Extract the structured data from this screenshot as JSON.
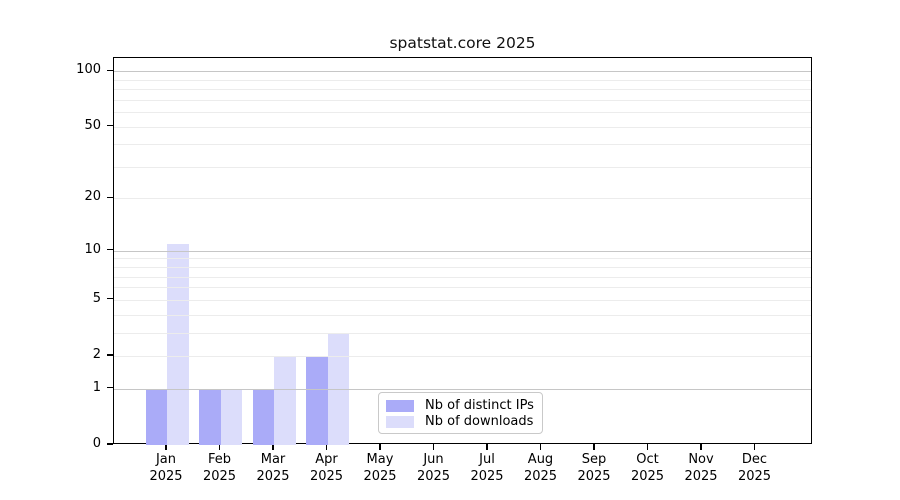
{
  "title": "spatstat.core 2025",
  "chart_data": {
    "type": "bar",
    "title": "spatstat.core 2025",
    "categories": [
      "Jan 2025",
      "Feb 2025",
      "Mar 2025",
      "Apr 2025",
      "May 2025",
      "Jun 2025",
      "Jul 2025",
      "Aug 2025",
      "Sep 2025",
      "Oct 2025",
      "Nov 2025",
      "Dec 2025"
    ],
    "series": [
      {
        "name": "Nb of distinct IPs",
        "color": "#aaabf8",
        "values": [
          1,
          1,
          1,
          2,
          0,
          0,
          0,
          0,
          0,
          0,
          0,
          0
        ]
      },
      {
        "name": "Nb of downloads",
        "color": "#dcddfb",
        "values": [
          11,
          1,
          2,
          3,
          0,
          0,
          0,
          0,
          0,
          0,
          0,
          0
        ]
      }
    ],
    "xlabel": "",
    "ylabel": "",
    "y_scale": "log1p",
    "ylim": [
      0,
      118
    ],
    "y_ticks": [
      0,
      1,
      2,
      5,
      10,
      20,
      50,
      100
    ],
    "y_major_gridlines": [
      1,
      10,
      100
    ],
    "y_minor_gridlines": [
      2,
      3,
      4,
      5,
      6,
      7,
      8,
      9,
      20,
      30,
      40,
      50,
      60,
      70,
      80,
      90
    ],
    "grid": true,
    "legend_position": "inside-bottom-center"
  },
  "legend": {
    "items": [
      {
        "label": "Nb of distinct IPs",
        "color": "#aaabf8"
      },
      {
        "label": "Nb of downloads",
        "color": "#dcddfb"
      }
    ]
  },
  "colors": {
    "bar_distinct_ips": "#aaabf8",
    "bar_downloads": "#dcddfb",
    "grid_major": "#c6c6c6",
    "grid_minor": "#ececec",
    "axis": "#000000",
    "background": "#ffffff"
  }
}
